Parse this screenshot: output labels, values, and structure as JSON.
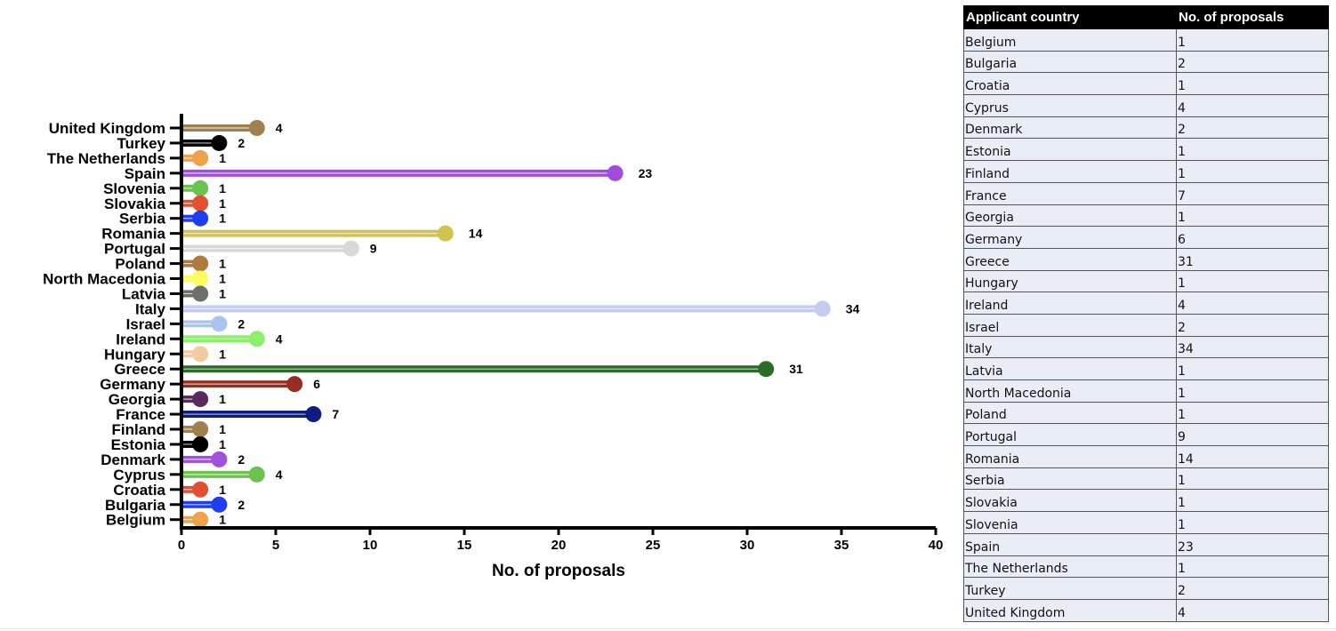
{
  "chart_data": {
    "type": "lollipop",
    "orientation": "horizontal",
    "categories": [
      "United Kingdom",
      "Turkey",
      "The Netherlands",
      "Spain",
      "Slovenia",
      "Slovakia",
      "Serbia",
      "Romania",
      "Portugal",
      "Poland",
      "North Macedonia",
      "Latvia",
      "Italy",
      "Israel",
      "Ireland",
      "Hungary",
      "Greece",
      "Germany",
      "Georgia",
      "France",
      "Finland",
      "Estonia",
      "Denmark",
      "Cyprus",
      "Croatia",
      "Bulgaria",
      "Belgium"
    ],
    "values": [
      4,
      2,
      1,
      23,
      1,
      1,
      1,
      14,
      9,
      1,
      1,
      1,
      34,
      2,
      4,
      1,
      31,
      6,
      1,
      7,
      1,
      1,
      2,
      4,
      1,
      2,
      1
    ],
    "colors": [
      "#a0804f",
      "#000000",
      "#f0a24a",
      "#a04ddc",
      "#6cc24e",
      "#e15030",
      "#1e3ef0",
      "#cfc24e",
      "#d8d8d8",
      "#b07a3c",
      "#fffb5e",
      "#6e6e6e",
      "#c4ccf2",
      "#a9c4ee",
      "#8af06a",
      "#f0cc9e",
      "#2e6b2a",
      "#982c20",
      "#5a2a5c",
      "#101c82",
      "#a0804f",
      "#000000",
      "#a24fdc",
      "#6cc24e",
      "#e15030",
      "#1e3ef0",
      "#f0a24a"
    ],
    "xlabel": "No. of proposals",
    "xlim": [
      0,
      40
    ],
    "xticks": [
      0,
      5,
      10,
      15,
      20,
      25,
      30,
      35,
      40
    ],
    "grid": false
  },
  "table": {
    "headers": [
      "Applicant country",
      "No. of proposals"
    ],
    "rows": [
      [
        "Belgium",
        "1"
      ],
      [
        "Bulgaria",
        "2"
      ],
      [
        "Croatia",
        "1"
      ],
      [
        "Cyprus",
        "4"
      ],
      [
        "Denmark",
        "2"
      ],
      [
        "Estonia",
        "1"
      ],
      [
        "Finland",
        "1"
      ],
      [
        "France",
        "7"
      ],
      [
        "Georgia",
        "1"
      ],
      [
        "Germany",
        "6"
      ],
      [
        "Greece",
        "31"
      ],
      [
        "Hungary",
        "1"
      ],
      [
        "Ireland",
        "4"
      ],
      [
        "Israel",
        "2"
      ],
      [
        "Italy",
        "34"
      ],
      [
        "Latvia",
        "1"
      ],
      [
        "North Macedonia",
        "1"
      ],
      [
        "Poland",
        "1"
      ],
      [
        "Portugal",
        "9"
      ],
      [
        "Romania",
        "14"
      ],
      [
        "Serbia",
        "1"
      ],
      [
        "Slovakia",
        "1"
      ],
      [
        "Slovenia",
        "1"
      ],
      [
        "Spain",
        "23"
      ],
      [
        "The Netherlands",
        "1"
      ],
      [
        "Turkey",
        "2"
      ],
      [
        "United Kingdom",
        "4"
      ]
    ]
  }
}
